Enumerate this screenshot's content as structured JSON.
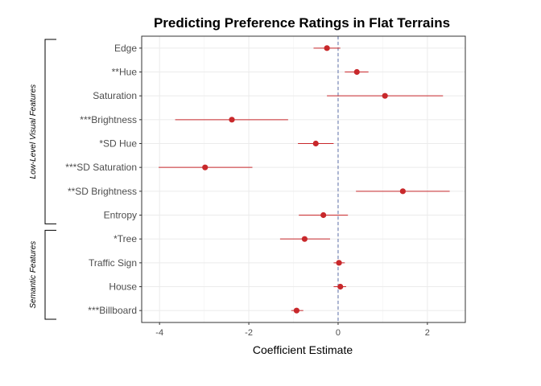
{
  "chart_data": {
    "type": "forest",
    "title": "Predicting Preference Ratings in Flat Terrains",
    "xlabel": "Coefficient Estimate",
    "ylabel": "",
    "xlim": [
      -4.4,
      2.85
    ],
    "xticks": [
      -4,
      -2,
      0,
      2
    ],
    "reference_line_x": 0,
    "grid": true,
    "point_color": "#c8282b",
    "reference_line_color": "#5b6ea8",
    "rows": [
      {
        "label": "Edge",
        "estimate": -0.25,
        "lower": -0.55,
        "upper": 0.05
      },
      {
        "label": "**Hue",
        "estimate": 0.42,
        "lower": 0.15,
        "upper": 0.68
      },
      {
        "label": "Saturation",
        "estimate": 1.05,
        "lower": -0.25,
        "upper": 2.35
      },
      {
        "label": "***Brightness",
        "estimate": -2.38,
        "lower": -3.65,
        "upper": -1.12
      },
      {
        "label": "*SD Hue",
        "estimate": -0.5,
        "lower": -0.9,
        "upper": -0.1
      },
      {
        "label": "***SD Saturation",
        "estimate": -2.98,
        "lower": -4.02,
        "upper": -1.92
      },
      {
        "label": "**SD Brightness",
        "estimate": 1.45,
        "lower": 0.4,
        "upper": 2.5
      },
      {
        "label": "Entropy",
        "estimate": -0.33,
        "lower": -0.88,
        "upper": 0.22
      },
      {
        "label": "*Tree",
        "estimate": -0.75,
        "lower": -1.3,
        "upper": -0.18
      },
      {
        "label": "Traffic Sign",
        "estimate": 0.02,
        "lower": -0.1,
        "upper": 0.15
      },
      {
        "label": "House",
        "estimate": 0.05,
        "lower": -0.1,
        "upper": 0.18
      },
      {
        "label": "***Billboard",
        "estimate": -0.93,
        "lower": -1.05,
        "upper": -0.78
      }
    ],
    "groups": [
      {
        "label": "Low-Level Visual Features",
        "rows": [
          0,
          7
        ]
      },
      {
        "label": "Semantic Features",
        "rows": [
          8,
          11
        ]
      }
    ]
  }
}
